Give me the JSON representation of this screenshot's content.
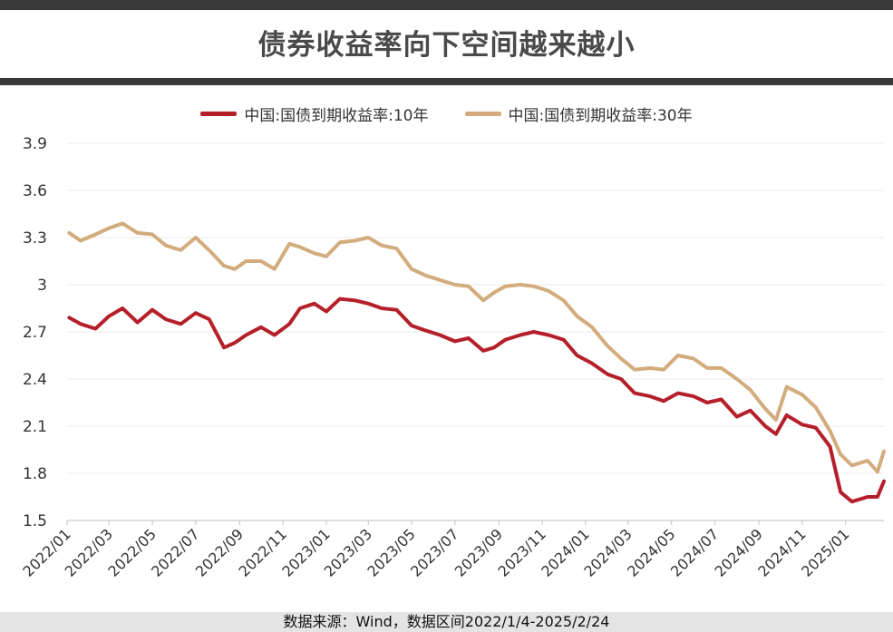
{
  "title": "债券收益率向下空间越来越小",
  "footer": "数据来源：Wind，数据区间2022/1/4-2025/2/24",
  "chart_data": {
    "type": "line",
    "title": "债券收益率向下空间越来越小",
    "xlabel": "",
    "ylabel": "",
    "ylim": [
      1.5,
      3.9
    ],
    "yticks": [
      "1.5",
      "1.8",
      "2.1",
      "2.4",
      "2.7",
      "3",
      "3.3",
      "3.6",
      "3.9"
    ],
    "xticks": [
      "2022/01",
      "2022/03",
      "2022/05",
      "2022/07",
      "2022/09",
      "2022/11",
      "2023/01",
      "2023/03",
      "2023/05",
      "2023/07",
      "2023/09",
      "2023/11",
      "2024/01",
      "2024/03",
      "2024/05",
      "2024/07",
      "2024/09",
      "2024/11",
      "2025/01"
    ],
    "grid": "horizontal",
    "legend_position": "top-center",
    "x": [
      "2022/01/04",
      "2022/01/20",
      "2022/02/10",
      "2022/03/01",
      "2022/03/20",
      "2022/04/10",
      "2022/05/01",
      "2022/05/20",
      "2022/06/10",
      "2022/07/01",
      "2022/07/20",
      "2022/08/10",
      "2022/08/25",
      "2022/09/10",
      "2022/10/01",
      "2022/10/20",
      "2022/11/10",
      "2022/11/25",
      "2022/12/15",
      "2023/01/01",
      "2023/01/20",
      "2023/02/10",
      "2023/03/01",
      "2023/03/20",
      "2023/04/10",
      "2023/05/01",
      "2023/05/20",
      "2023/06/10",
      "2023/07/01",
      "2023/07/20",
      "2023/08/10",
      "2023/08/25",
      "2023/09/10",
      "2023/10/01",
      "2023/10/20",
      "2023/11/10",
      "2023/12/01",
      "2023/12/20",
      "2024/01/10",
      "2024/02/01",
      "2024/02/20",
      "2024/03/10",
      "2024/04/01",
      "2024/04/20",
      "2024/05/10",
      "2024/06/01",
      "2024/06/20",
      "2024/07/10",
      "2024/08/01",
      "2024/08/20",
      "2024/09/10",
      "2024/09/25",
      "2024/10/10",
      "2024/11/01",
      "2024/11/20",
      "2024/12/10",
      "2024/12/25",
      "2025/01/10",
      "2025/02/01",
      "2025/02/15",
      "2025/02/24"
    ],
    "series": [
      {
        "name": "中国:国债到期收益率:10年",
        "color": "#b51f2a",
        "values": [
          2.79,
          2.75,
          2.72,
          2.8,
          2.85,
          2.76,
          2.84,
          2.78,
          2.75,
          2.82,
          2.78,
          2.6,
          2.63,
          2.68,
          2.73,
          2.68,
          2.75,
          2.85,
          2.88,
          2.83,
          2.91,
          2.9,
          2.88,
          2.85,
          2.84,
          2.74,
          2.71,
          2.68,
          2.64,
          2.66,
          2.58,
          2.6,
          2.65,
          2.68,
          2.7,
          2.68,
          2.65,
          2.55,
          2.5,
          2.43,
          2.4,
          2.31,
          2.29,
          2.26,
          2.31,
          2.29,
          2.25,
          2.27,
          2.16,
          2.2,
          2.1,
          2.05,
          2.17,
          2.11,
          2.09,
          1.97,
          1.68,
          1.62,
          1.65,
          1.65,
          1.75
        ]
      },
      {
        "name": "中国:国债到期收益率:30年",
        "color": "#d2ac7c",
        "values": [
          3.33,
          3.28,
          3.32,
          3.36,
          3.39,
          3.33,
          3.32,
          3.25,
          3.22,
          3.3,
          3.22,
          3.12,
          3.1,
          3.15,
          3.15,
          3.1,
          3.26,
          3.24,
          3.2,
          3.18,
          3.27,
          3.28,
          3.3,
          3.25,
          3.23,
          3.1,
          3.06,
          3.03,
          3.0,
          2.99,
          2.9,
          2.95,
          2.99,
          3.0,
          2.99,
          2.96,
          2.9,
          2.8,
          2.73,
          2.61,
          2.53,
          2.46,
          2.47,
          2.46,
          2.55,
          2.53,
          2.47,
          2.47,
          2.4,
          2.33,
          2.21,
          2.14,
          2.35,
          2.3,
          2.22,
          2.07,
          1.92,
          1.85,
          1.88,
          1.81,
          1.94
        ]
      }
    ]
  }
}
